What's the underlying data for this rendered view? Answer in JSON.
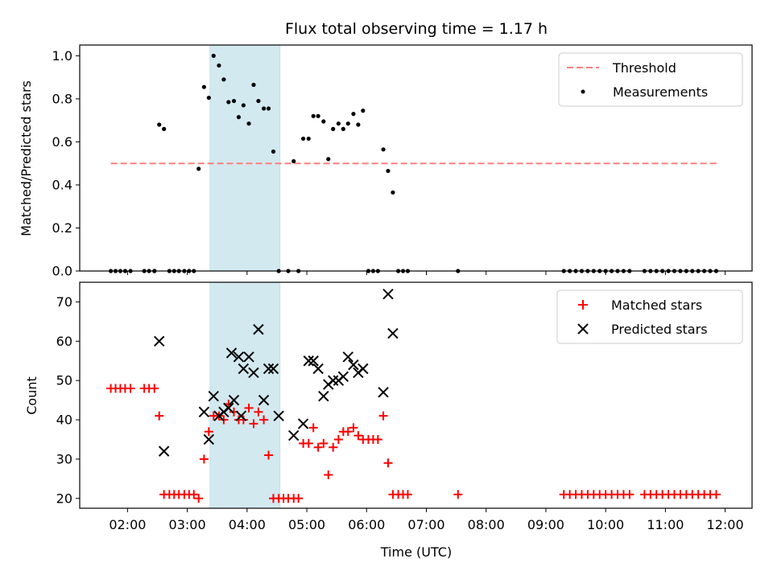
{
  "chart_data": {
    "type": "scatter",
    "title": "Flux total observing time = 1.17 h",
    "xlabel": "Time (UTC)",
    "x_ticks": [
      "02:00",
      "03:00",
      "04:00",
      "05:00",
      "06:00",
      "07:00",
      "08:00",
      "09:00",
      "10:00",
      "11:00",
      "12:00"
    ],
    "x_range_hours": [
      1.2,
      12.45
    ],
    "shaded_interval_hours": [
      3.38,
      4.55
    ],
    "shade_color": "#d2e9f0",
    "panels": [
      {
        "name": "ratio",
        "ylabel": "Matched/Predicted stars",
        "ylim": [
          0.0,
          1.05
        ],
        "yticks": [
          "0.0",
          "0.2",
          "0.4",
          "0.6",
          "0.8",
          "1.0"
        ],
        "series": [
          {
            "name": "Threshold",
            "type": "dashed-line",
            "color": "#ff7f7f",
            "x": [
              1.72,
              11.9
            ],
            "y": [
              0.5,
              0.5
            ]
          },
          {
            "name": "Measurements",
            "type": "scatter",
            "marker": "dot",
            "color": "#000000",
            "x": [
              1.72,
              1.8,
              1.88,
              1.96,
              2.05,
              2.28,
              2.36,
              2.45,
              2.53,
              2.61,
              2.95,
              3.03,
              3.11,
              3.19,
              3.28,
              3.36,
              3.44,
              3.53,
              3.61,
              3.69,
              3.78,
              3.86,
              3.94,
              4.03,
              4.11,
              4.19,
              4.28,
              4.36,
              4.44,
              4.53,
              4.69,
              4.78,
              4.86,
              4.94,
              5.03,
              5.11,
              5.19,
              5.28,
              5.36,
              5.44,
              5.53,
              5.61,
              5.69,
              5.78,
              5.86,
              5.94,
              6.03,
              6.11,
              6.19,
              6.28,
              6.36,
              6.44,
              6.53,
              6.61,
              6.69,
              7.53,
              9.3,
              9.4,
              9.5,
              9.6,
              9.7,
              9.8,
              9.9,
              10.0,
              10.1,
              10.2,
              10.3,
              10.4,
              10.65,
              10.75,
              10.85,
              10.95,
              11.05,
              11.15,
              11.25,
              11.35,
              11.45,
              11.55,
              11.65,
              11.75,
              11.85,
              2.45,
              2.7,
              2.78,
              2.86
            ],
            "y": [
              0,
              0,
              0,
              0,
              0,
              0,
              0,
              0,
              0.68,
              0.66,
              0,
              0,
              0,
              0.475,
              0.855,
              0.805,
              1.0,
              0.955,
              0.89,
              0.785,
              0.79,
              0.715,
              0.77,
              0.685,
              0.865,
              0.79,
              0.755,
              0.755,
              0.555,
              0,
              0,
              0.51,
              0,
              0.615,
              0.615,
              0.72,
              0.72,
              0.695,
              0.52,
              0.66,
              0.685,
              0.66,
              0.685,
              0.73,
              0.68,
              0.745,
              0,
              0,
              0,
              0.565,
              0.465,
              0.365,
              0,
              0,
              0,
              0,
              0,
              0,
              0,
              0,
              0,
              0,
              0,
              0,
              0,
              0,
              0,
              0,
              0,
              0,
              0,
              0,
              0,
              0,
              0,
              0,
              0,
              0,
              0,
              0,
              0,
              0,
              0,
              0,
              0
            ]
          }
        ],
        "legend": {
          "placement": "upper right",
          "entries": [
            "Threshold",
            "Measurements"
          ]
        }
      },
      {
        "name": "counts",
        "ylabel": "Count",
        "ylim": [
          17.5,
          75
        ],
        "yticks": [
          "20",
          "30",
          "40",
          "50",
          "60",
          "70"
        ],
        "series": [
          {
            "name": "Matched stars",
            "type": "scatter",
            "marker": "plus",
            "color": "#ff0000",
            "x": [
              1.72,
              1.8,
              1.88,
              1.96,
              2.05,
              2.28,
              2.36,
              2.45,
              2.53,
              2.61,
              2.7,
              2.78,
              2.86,
              2.95,
              3.03,
              3.11,
              3.19,
              3.28,
              3.36,
              3.44,
              3.53,
              3.61,
              3.69,
              3.78,
              3.86,
              3.94,
              4.03,
              4.11,
              4.19,
              4.28,
              4.36,
              4.44,
              4.53,
              4.61,
              4.69,
              4.78,
              4.86,
              4.94,
              5.03,
              5.11,
              5.19,
              5.28,
              5.36,
              5.44,
              5.53,
              5.61,
              5.69,
              5.78,
              5.86,
              5.94,
              6.03,
              6.11,
              6.19,
              6.28,
              6.36,
              6.44,
              6.53,
              6.61,
              6.69,
              7.53,
              9.3,
              9.4,
              9.5,
              9.6,
              9.7,
              9.8,
              9.9,
              10.0,
              10.1,
              10.2,
              10.3,
              10.4,
              10.65,
              10.75,
              10.85,
              10.95,
              11.05,
              11.15,
              11.25,
              11.35,
              11.45,
              11.55,
              11.65,
              11.75,
              11.85
            ],
            "y": [
              48,
              48,
              48,
              48,
              48,
              48,
              48,
              48,
              41,
              21,
              21,
              21,
              21,
              21,
              21,
              21,
              20,
              30,
              37,
              41,
              41,
              40,
              44,
              42,
              40,
              40,
              43,
              39,
              42,
              40,
              31,
              20,
              20,
              20,
              20,
              20,
              20,
              34,
              34,
              38,
              33,
              34,
              26,
              33,
              35,
              37,
              37,
              38,
              36,
              35,
              35,
              35,
              35,
              41,
              29,
              21,
              21,
              21,
              21,
              21,
              21,
              21,
              21,
              21,
              21,
              21,
              21,
              21,
              21,
              21,
              21,
              21,
              21,
              21,
              21,
              21,
              21,
              21,
              21,
              21,
              21,
              21,
              21,
              21,
              21
            ]
          },
          {
            "name": "Predicted stars",
            "type": "scatter",
            "marker": "x",
            "color": "#000000",
            "x": [
              2.53,
              2.61,
              3.28,
              3.36,
              3.44,
              3.53,
              3.61,
              3.69,
              3.78,
              3.86,
              3.94,
              4.03,
              4.11,
              4.19,
              4.28,
              4.36,
              4.44,
              4.53,
              4.78,
              4.94,
              5.03,
              5.11,
              5.19,
              5.28,
              5.36,
              5.44,
              5.53,
              5.61,
              5.69,
              5.78,
              5.86,
              5.94,
              6.28,
              6.36,
              6.44,
              3.74,
              3.9
            ],
            "y": [
              60,
              32,
              42,
              35,
              46,
              41,
              42,
              43,
              45,
              56,
              53,
              56,
              52,
              63,
              45,
              53,
              53,
              41,
              36,
              39,
              55,
              55,
              53,
              46,
              49,
              50,
              50,
              51,
              56,
              54,
              52,
              53,
              47,
              72,
              62,
              57,
              41
            ]
          }
        ],
        "legend": {
          "placement": "upper right",
          "entries": [
            "Matched stars",
            "Predicted stars"
          ]
        }
      }
    ],
    "grid": false
  }
}
